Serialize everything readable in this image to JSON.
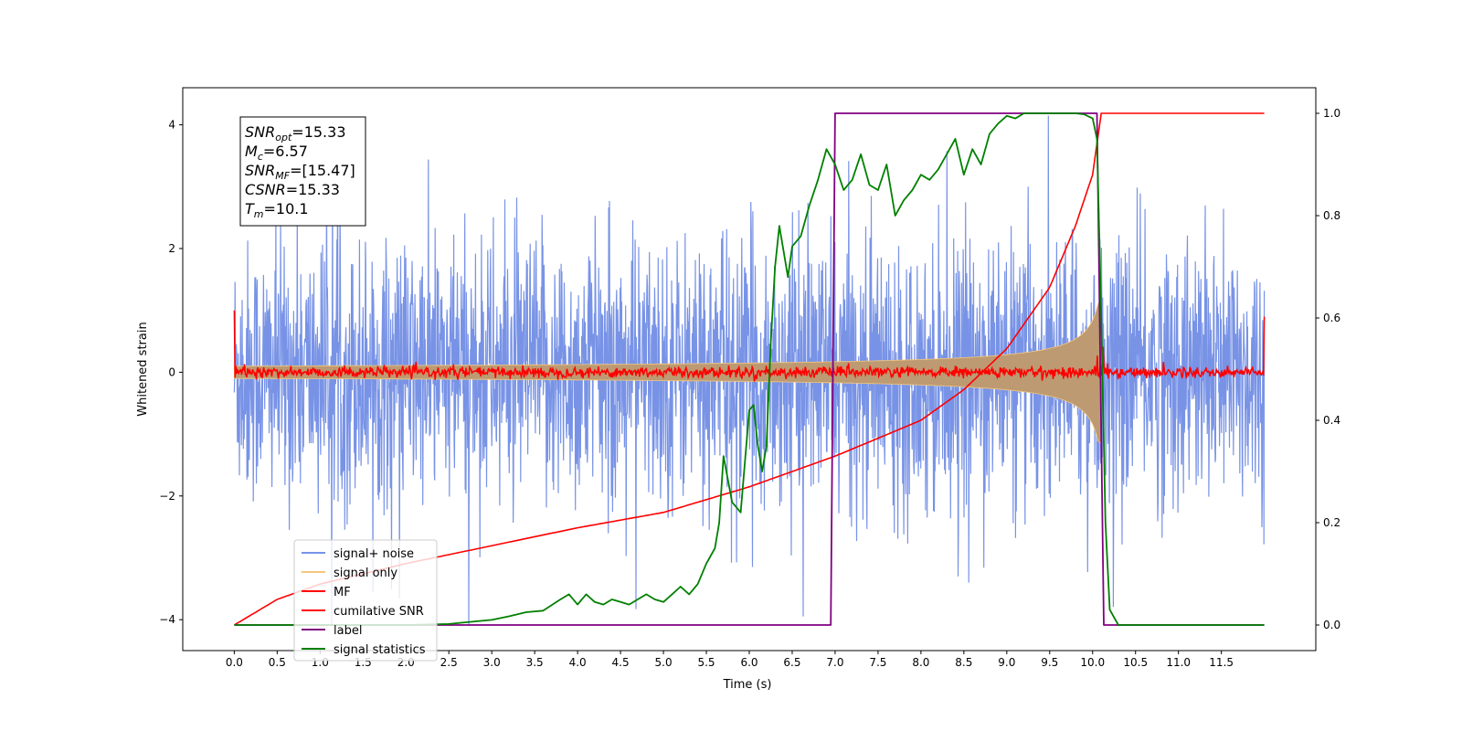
{
  "chart_data": {
    "type": "line",
    "xlabel": "Time (s)",
    "ylabel_left": "Whitened strain",
    "xlim": [
      -0.6,
      12.6
    ],
    "ylim_left": [
      -4.5,
      4.6
    ],
    "ylim_right": [
      -0.05,
      1.05
    ],
    "x_ticks": [
      0.0,
      0.5,
      1.0,
      1.5,
      2.0,
      2.5,
      3.0,
      3.5,
      4.0,
      4.5,
      5.0,
      5.5,
      6.0,
      6.5,
      7.0,
      7.5,
      8.0,
      8.5,
      9.0,
      9.5,
      10.0,
      10.5,
      11.0,
      11.5
    ],
    "x_tick_labels": [
      "0.0",
      "0.5",
      "1.0",
      "1.5",
      "2.0",
      "2.5",
      "3.0",
      "3.5",
      "4.0",
      "4.5",
      "5.0",
      "5.5",
      "6.0",
      "6.5",
      "7.0",
      "7.5",
      "8.0",
      "8.5",
      "9.0",
      "9.5",
      "10.0",
      "10.5",
      "11.0",
      "11.5"
    ],
    "y_left_ticks": [
      -4,
      -2,
      0,
      2,
      4
    ],
    "y_left_tick_labels": [
      "−4",
      "−2",
      "0",
      "2",
      "4"
    ],
    "y_right_ticks": [
      0.0,
      0.2,
      0.4,
      0.6,
      0.8,
      1.0
    ],
    "y_right_tick_labels": [
      "0.0",
      "0.2",
      "0.4",
      "0.6",
      "0.8",
      "1.0"
    ],
    "annotation": [
      {
        "base": "SNR",
        "sub": "opt",
        "rest": "=15.33"
      },
      {
        "base": "M",
        "sub": "c",
        "rest": "=6.57"
      },
      {
        "base": "SNR",
        "sub": "MF",
        "rest": "=[15.47]"
      },
      {
        "base": "CSNR",
        "sub": "",
        "rest": "=15.33"
      },
      {
        "base": "T",
        "sub": "m",
        "rest": "=10.1"
      }
    ],
    "legend_placement": "lower-left",
    "series": [
      {
        "name": "signal+ noise",
        "axis": "left",
        "color": "#7893e6",
        "description_values": {
          "x_range": [
            0.0,
            12.0
          ],
          "amplitude_range": [
            -4.1,
            4.2
          ]
        }
      },
      {
        "name": "signal only",
        "axis": "left",
        "color": "#f5c77a",
        "fill_color": "#bd9a72",
        "description_values": {
          "x_range": [
            0.0,
            10.1
          ],
          "envelope_end": 1.15
        }
      },
      {
        "name": "MF",
        "axis": "left",
        "color": "#ff0000",
        "description_values": {
          "x_range": [
            0.0,
            12.0
          ],
          "start": 1.0,
          "end": 0.9,
          "noise_level": 0.08
        }
      },
      {
        "name": "cumilative SNR",
        "axis": "right",
        "color": "#ff0000",
        "x": [
          0.0,
          0.5,
          1.0,
          2.0,
          3.0,
          4.0,
          5.0,
          6.0,
          7.0,
          8.0,
          8.5,
          9.0,
          9.5,
          9.8,
          10.0,
          10.1,
          11.0,
          12.0
        ],
        "y": [
          0.0,
          0.05,
          0.08,
          0.12,
          0.155,
          0.19,
          0.22,
          0.27,
          0.33,
          0.4,
          0.46,
          0.54,
          0.66,
          0.78,
          0.88,
          1.0,
          1.0,
          1.0
        ]
      },
      {
        "name": "label",
        "axis": "right",
        "color": "#800080",
        "x": [
          0.0,
          6.95,
          7.0,
          10.05,
          10.13,
          12.0
        ],
        "y": [
          0.0,
          0.0,
          1.0,
          1.0,
          0.0,
          0.0
        ]
      },
      {
        "name": "signal statistics",
        "axis": "right",
        "color": "#008000",
        "x": [
          0.0,
          1.0,
          2.0,
          2.5,
          2.8,
          3.0,
          3.2,
          3.4,
          3.6,
          3.8,
          3.9,
          4.0,
          4.1,
          4.2,
          4.3,
          4.4,
          4.5,
          4.6,
          4.7,
          4.8,
          4.9,
          5.0,
          5.1,
          5.2,
          5.3,
          5.4,
          5.5,
          5.6,
          5.65,
          5.7,
          5.8,
          5.9,
          6.0,
          6.05,
          6.1,
          6.15,
          6.2,
          6.25,
          6.3,
          6.35,
          6.4,
          6.45,
          6.5,
          6.6,
          6.7,
          6.8,
          6.9,
          7.0,
          7.1,
          7.2,
          7.3,
          7.4,
          7.5,
          7.6,
          7.7,
          7.8,
          7.9,
          8.0,
          8.1,
          8.2,
          8.3,
          8.4,
          8.5,
          8.6,
          8.7,
          8.8,
          8.9,
          9.0,
          9.1,
          9.2,
          9.3,
          9.4,
          9.5,
          9.6,
          9.7,
          9.8,
          9.9,
          10.0,
          10.05,
          10.1,
          10.15,
          10.2,
          10.3,
          10.4,
          11.0,
          12.0
        ],
        "y": [
          0.0,
          0.0,
          0.0,
          0.002,
          0.007,
          0.01,
          0.017,
          0.025,
          0.028,
          0.05,
          0.06,
          0.04,
          0.06,
          0.045,
          0.04,
          0.05,
          0.045,
          0.04,
          0.05,
          0.06,
          0.05,
          0.045,
          0.06,
          0.075,
          0.06,
          0.08,
          0.12,
          0.15,
          0.2,
          0.33,
          0.24,
          0.22,
          0.42,
          0.43,
          0.35,
          0.3,
          0.35,
          0.55,
          0.7,
          0.78,
          0.73,
          0.68,
          0.74,
          0.76,
          0.82,
          0.87,
          0.93,
          0.9,
          0.85,
          0.87,
          0.92,
          0.86,
          0.85,
          0.9,
          0.8,
          0.83,
          0.85,
          0.88,
          0.87,
          0.89,
          0.92,
          0.95,
          0.88,
          0.93,
          0.9,
          0.96,
          0.98,
          0.995,
          0.99,
          1.0,
          1.0,
          1.0,
          1.0,
          1.0,
          1.0,
          1.0,
          0.998,
          0.99,
          0.95,
          0.6,
          0.2,
          0.03,
          0.0,
          0.0,
          0.0,
          0.0
        ]
      }
    ]
  }
}
